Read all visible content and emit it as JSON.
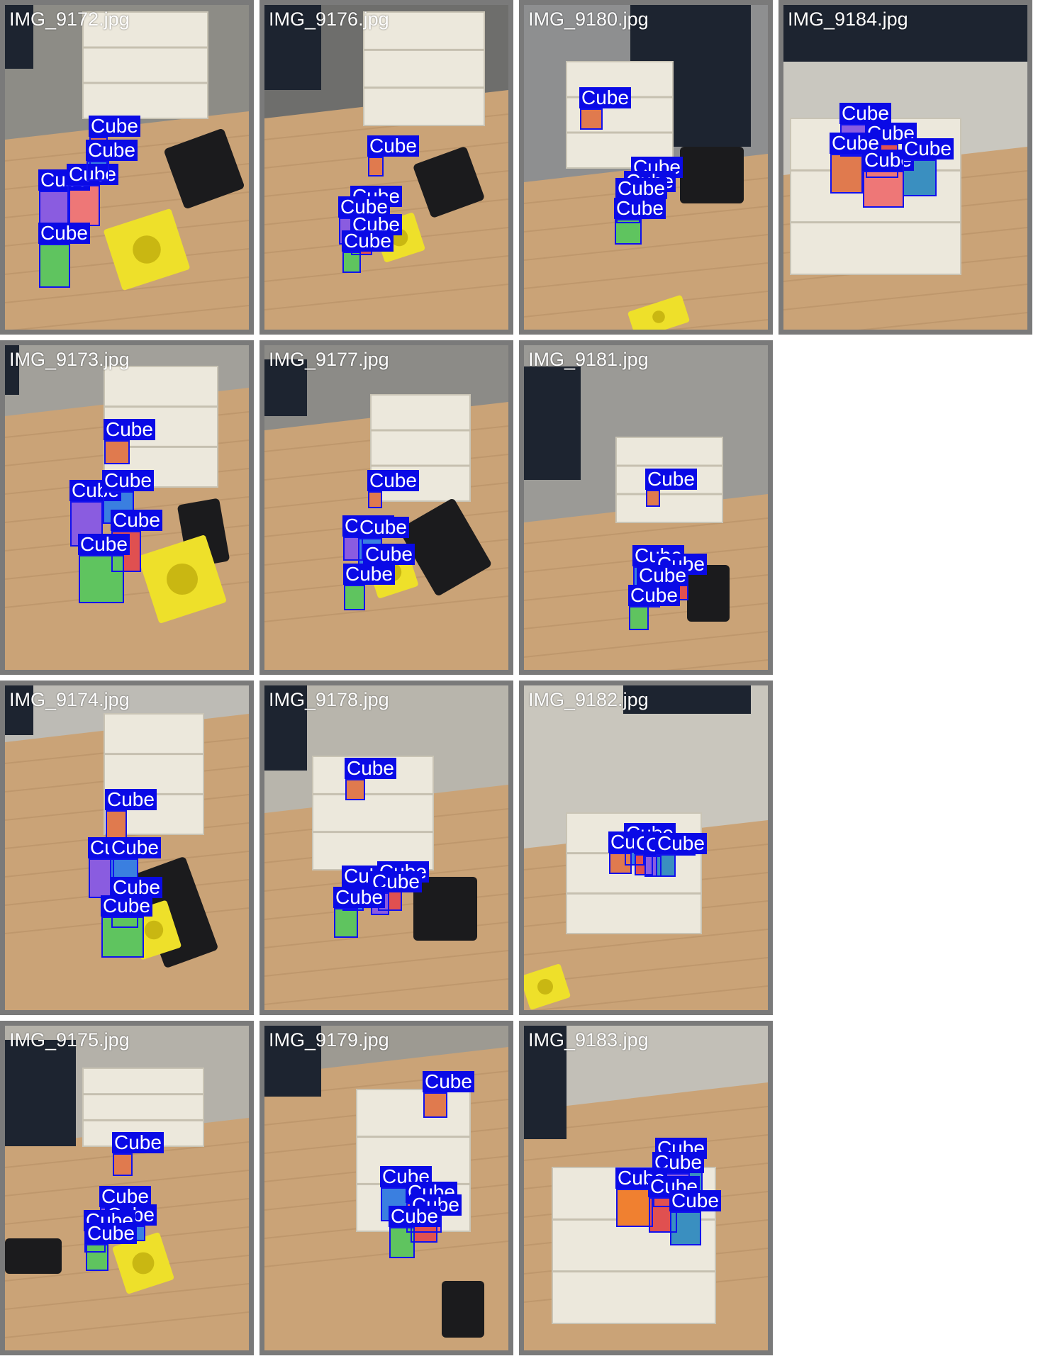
{
  "grid": {
    "tiles": [
      {
        "file": "IMG_9172.jpg",
        "detections": [
          "Cube",
          "Cube",
          "Cube",
          "Cube",
          "Cube"
        ]
      },
      {
        "file": "IMG_9176.jpg",
        "detections": [
          "Cube",
          "Cube",
          "Cube",
          "Cube",
          "Cube"
        ]
      },
      {
        "file": "IMG_9180.jpg",
        "detections": [
          "Cube",
          "Cube",
          "Cube",
          "Cube",
          "Cube"
        ]
      },
      {
        "file": "IMG_9184.jpg",
        "detections": [
          "Cube",
          "Cube",
          "Cube",
          "Cube",
          "Cube"
        ]
      },
      {
        "file": "IMG_9173.jpg",
        "detections": [
          "Cube",
          "Cube",
          "Cube",
          "Cube",
          "Cube"
        ]
      },
      {
        "file": "IMG_9177.jpg",
        "detections": [
          "Cube",
          "Cube",
          "Cube",
          "Cube",
          "Cube"
        ]
      },
      {
        "file": "IMG_9181.jpg",
        "detections": [
          "Cube",
          "Cube",
          "Cube",
          "Cube",
          "Cube"
        ]
      },
      {
        "file": "IMG_9174.jpg",
        "detections": [
          "Cube",
          "Cube",
          "Cube",
          "Cube",
          "Cube"
        ]
      },
      {
        "file": "IMG_9178.jpg",
        "detections": [
          "Cube",
          "Cube",
          "Cube",
          "Cube",
          "Cube"
        ]
      },
      {
        "file": "IMG_9182.jpg",
        "detections": [
          "Cube",
          "Cube",
          "Cube",
          "Cube",
          "Cube"
        ]
      },
      {
        "file": "IMG_9175.jpg",
        "detections": [
          "Cube",
          "Cube",
          "Cube",
          "Cube",
          "Cube"
        ]
      },
      {
        "file": "IMG_9179.jpg",
        "detections": [
          "Cube",
          "Cube",
          "Cube",
          "Cube",
          "Cube"
        ]
      },
      {
        "file": "IMG_9183.jpg",
        "detections": [
          "Cube",
          "Cube",
          "Cube",
          "Cube",
          "Cube"
        ]
      }
    ]
  },
  "colors": {
    "frame": "#7a7a7a",
    "label_bg": "#0a0ae6",
    "box_border": "#1111ee",
    "label_text": "#ffffff"
  }
}
